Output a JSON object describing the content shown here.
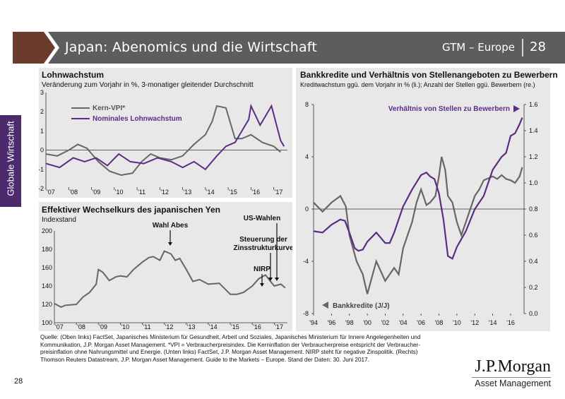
{
  "header": {
    "title": "Japan: Abenomics und die Wirtschaft",
    "series": "GTM – Europe",
    "page": "28",
    "bar_color": "#5d5d5d",
    "accent_color": "#6b3c2c"
  },
  "side_tab": {
    "label": "Globale Wirtschaft",
    "color": "#4b2a6e"
  },
  "chart_data": [
    {
      "type": "line",
      "title": "Lohnwachstum",
      "subtitle": "Veränderung zum Vorjahr in %, 3-monatiger gleitender Durchschnitt",
      "x_ticks": [
        "'07",
        "'08",
        "'09",
        "'10",
        "'11",
        "'12",
        "'13",
        "'14",
        "'15",
        "'16",
        "'17"
      ],
      "y_ticks": [
        "3",
        "2",
        "1",
        "0",
        "-1",
        "-2"
      ],
      "ylim": [
        -2,
        3
      ],
      "xlim": [
        2007,
        2017.6
      ],
      "series": [
        {
          "name": "Kern-VPI*",
          "color": "#666666",
          "x": [
            2007,
            2007.5,
            2008,
            2008.4,
            2008.8,
            2009.3,
            2009.8,
            2010.3,
            2010.8,
            2011.2,
            2011.6,
            2012,
            2012.5,
            2013,
            2013.5,
            2014,
            2014.3,
            2014.5,
            2014.9,
            2015.3,
            2015.6,
            2016,
            2016.5,
            2017,
            2017.3
          ],
          "values": [
            -0.2,
            -0.3,
            0,
            0.3,
            0.1,
            -0.6,
            -1.1,
            -1.3,
            -1.2,
            -0.6,
            -0.2,
            -0.4,
            -0.5,
            -0.3,
            0.3,
            0.8,
            1.5,
            2.3,
            2.2,
            0.6,
            0.6,
            0.8,
            0.4,
            0.2,
            -0.1
          ]
        },
        {
          "name": "Nominales Lohnwachstum",
          "color": "#5b2d86",
          "x": [
            2007,
            2007.6,
            2008.2,
            2008.7,
            2009.2,
            2009.7,
            2010.2,
            2010.7,
            2011.3,
            2011.9,
            2012.5,
            2013,
            2013.5,
            2014,
            2014.5,
            2014.9,
            2015.3,
            2015.9,
            2016,
            2016.4,
            2016.9,
            2017.3,
            2017.45
          ],
          "values": [
            -0.7,
            -0.9,
            -0.4,
            -0.6,
            -0.4,
            -0.8,
            -0.2,
            -0.6,
            -0.7,
            -0.4,
            -0.6,
            -0.9,
            -0.6,
            -1.0,
            -0.3,
            0.2,
            0.4,
            1.6,
            2.3,
            1.3,
            2.3,
            0.5,
            0.2
          ]
        }
      ]
    },
    {
      "type": "line",
      "title": "Effektiver Wechselkurs des japanischen Yen",
      "subtitle": "Indexstand",
      "x_ticks": [
        "'07",
        "'08",
        "'09",
        "'10",
        "'11",
        "'12",
        "'13",
        "'14",
        "'15",
        "'16",
        "'17"
      ],
      "y_ticks": [
        "200",
        "180",
        "160",
        "140",
        "120",
        "100"
      ],
      "ylim": [
        100,
        200
      ],
      "xlim": [
        2007,
        2017.6
      ],
      "series": [
        {
          "name": "Wechselkurs",
          "color": "#666666",
          "x": [
            2007,
            2007.3,
            2007.5,
            2008,
            2008.3,
            2008.6,
            2008.9,
            2009,
            2009.2,
            2009.5,
            2009.8,
            2010,
            2010.3,
            2010.6,
            2011,
            2011.3,
            2011.5,
            2011.8,
            2012,
            2012.3,
            2012.5,
            2012.7,
            2013,
            2013.3,
            2013.6,
            2014,
            2014.5,
            2015,
            2015.3,
            2015.6,
            2016,
            2016.3,
            2016.6,
            2016.8,
            2017,
            2017.3,
            2017.5
          ],
          "values": [
            121,
            117,
            119,
            120,
            128,
            133,
            142,
            158,
            155,
            146,
            150,
            151,
            150,
            158,
            166,
            171,
            172,
            168,
            178,
            175,
            168,
            170,
            158,
            145,
            147,
            142,
            143,
            131,
            131,
            133,
            140,
            148,
            152,
            146,
            140,
            142,
            138
          ]
        }
      ],
      "annotations": [
        "Wahl Abes",
        "US-Wahlen",
        "Steuerung der Zinsstrukturkurve",
        "NIRP"
      ]
    },
    {
      "type": "line",
      "title": "Bankkredite und Verhältnis von Stellenangeboten zu Bewerbern",
      "subtitle": "Kreditwachstum ggü. dem Vorjahr in % (li.); Anzahl der Stellen ggü. Bewerbern (re.)",
      "x_ticks": [
        "'94",
        "'96",
        "'98",
        "'00",
        "'02",
        "'04",
        "'06",
        "'08",
        "'10",
        "'12",
        "'14",
        "'16"
      ],
      "y_ticks_left": [
        "8",
        "4",
        "0",
        "-4",
        "-8"
      ],
      "y_ticks_right": [
        "1.6",
        "1.4",
        "1.2",
        "1.0",
        "0.8",
        "0.6",
        "0.4",
        "0.2",
        "0.0"
      ],
      "ylim_left": [
        -8,
        8
      ],
      "ylim_right": [
        0.0,
        1.6
      ],
      "xlim": [
        1994,
        2017.5
      ],
      "series": [
        {
          "name": "Bankkredite (J/J)",
          "axis": "left",
          "color": "#666666",
          "x": [
            1994,
            1995,
            1996,
            1997,
            1997.6,
            1998,
            1998.8,
            1999.5,
            2000,
            2000.6,
            2001,
            2002,
            2002.5,
            2003,
            2003.5,
            2004,
            2005,
            2005.5,
            2006,
            2006.6,
            2007,
            2007.6,
            2008,
            2008.3,
            2008.7,
            2009,
            2009.5,
            2010,
            2010.5,
            2011,
            2011.5,
            2012,
            2012.5,
            2013,
            2014,
            2014.5,
            2015,
            2015.5,
            2016,
            2016.5,
            2017,
            2017.3
          ],
          "values": [
            0.5,
            -0.2,
            0.5,
            1,
            0.2,
            -2,
            -4,
            -5,
            -6.5,
            -5,
            -4,
            -5.5,
            -5,
            -4.5,
            -5,
            -3,
            -1,
            0.5,
            1.5,
            0.3,
            0.5,
            1,
            2.5,
            4,
            3,
            1,
            0.5,
            -1,
            -2,
            -1,
            0,
            1,
            1.5,
            2.2,
            2.5,
            2.3,
            2.6,
            2.3,
            2.2,
            2,
            2.5,
            3.2
          ]
        },
        {
          "name": "Verhältnis von Stellen zu Bewerbern",
          "axis": "right",
          "color": "#5b2d86",
          "x": [
            1994,
            1995,
            1996,
            1997,
            1997.5,
            1998,
            1998.6,
            1999,
            1999.5,
            2000,
            2001,
            2002,
            2002.5,
            2003,
            2004,
            2005,
            2006,
            2006.6,
            2007,
            2007.5,
            2008,
            2008.5,
            2009,
            2009.5,
            2010,
            2011,
            2012,
            2013,
            2014,
            2015,
            2015.5,
            2016,
            2016.5,
            2017,
            2017.3
          ],
          "values": [
            0.63,
            0.62,
            0.68,
            0.72,
            0.71,
            0.62,
            0.5,
            0.48,
            0.49,
            0.55,
            0.62,
            0.54,
            0.54,
            0.62,
            0.82,
            0.95,
            1.06,
            1.08,
            1.05,
            1.03,
            0.92,
            0.72,
            0.44,
            0.42,
            0.51,
            0.63,
            0.8,
            0.9,
            1.1,
            1.2,
            1.23,
            1.36,
            1.38,
            1.45,
            1.5
          ]
        }
      ],
      "legend": [
        "Verhältnis von Stellen zu Bewerbern",
        "Bankkredite (J/J)"
      ]
    }
  ],
  "footer": {
    "source_lines": [
      "Quelle: (Oben links) FactSet, Japanisches Ministerium für Gesundheit, Arbeit und Soziales, Japanisches Ministerium für Innere Angelegenheiten und",
      "Kommunikation, J.P. Morgan Asset Management. *VPI = Verbraucherpreisindex. Die Kerninflation der Verbraucherpreise entspricht der Verbraucher-",
      "preisinflation ohne Nahrungsmittel und Energie. (Unten links) FactSet, J.P. Morgan Asset Management. NIRP steht für negative Zinspolitik. (Rechts)",
      "Thomson Reuters Datastream, J.P. Morgan Asset Management. Guide to the Markets – Europe. Stand der Daten: 30. Juni 2017."
    ],
    "page_number": "28",
    "logo_name": "J.P.Morgan",
    "logo_sub": "Asset Management"
  }
}
